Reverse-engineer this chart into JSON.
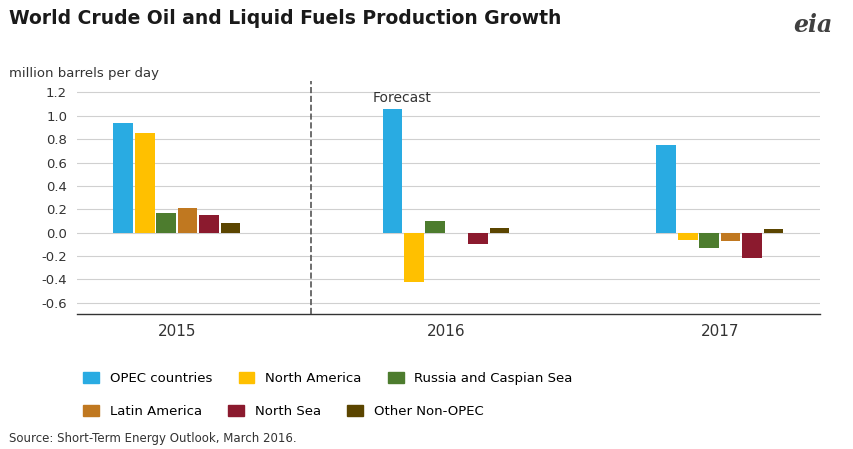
{
  "title": "World Crude Oil and Liquid Fuels Production Growth",
  "ylabel": "million barrels per day",
  "source": "Source: Short-Term Energy Outlook, March 2016.",
  "forecast_label": "Forecast",
  "years": [
    "2015",
    "2016",
    "2017"
  ],
  "series": [
    {
      "name": "OPEC countries",
      "color": "#29ABE2",
      "values": [
        0.94,
        1.06,
        0.75
      ]
    },
    {
      "name": "North America",
      "color": "#FFC000",
      "values": [
        0.85,
        -0.42,
        -0.06
      ]
    },
    {
      "name": "Russia and Caspian Sea",
      "color": "#4D7C2E",
      "values": [
        0.17,
        0.1,
        -0.13
      ]
    },
    {
      "name": "Latin America",
      "color": "#C07820",
      "values": [
        0.21,
        0.0,
        -0.07
      ]
    },
    {
      "name": "North Sea",
      "color": "#8B1A2E",
      "values": [
        0.15,
        -0.1,
        -0.22
      ]
    },
    {
      "name": "Other Non-OPEC",
      "color": "#5B4500",
      "values": [
        0.08,
        0.04,
        0.03
      ]
    }
  ],
  "ylim": [
    -0.7,
    1.3
  ],
  "yticks": [
    -0.6,
    -0.4,
    -0.2,
    0.0,
    0.2,
    0.4,
    0.6,
    0.8,
    1.0,
    1.2
  ],
  "bar_width": 0.09,
  "background_color": "#FFFFFF",
  "grid_color": "#D0D0D0",
  "group_centers": [
    0.42,
    1.55,
    2.7
  ]
}
